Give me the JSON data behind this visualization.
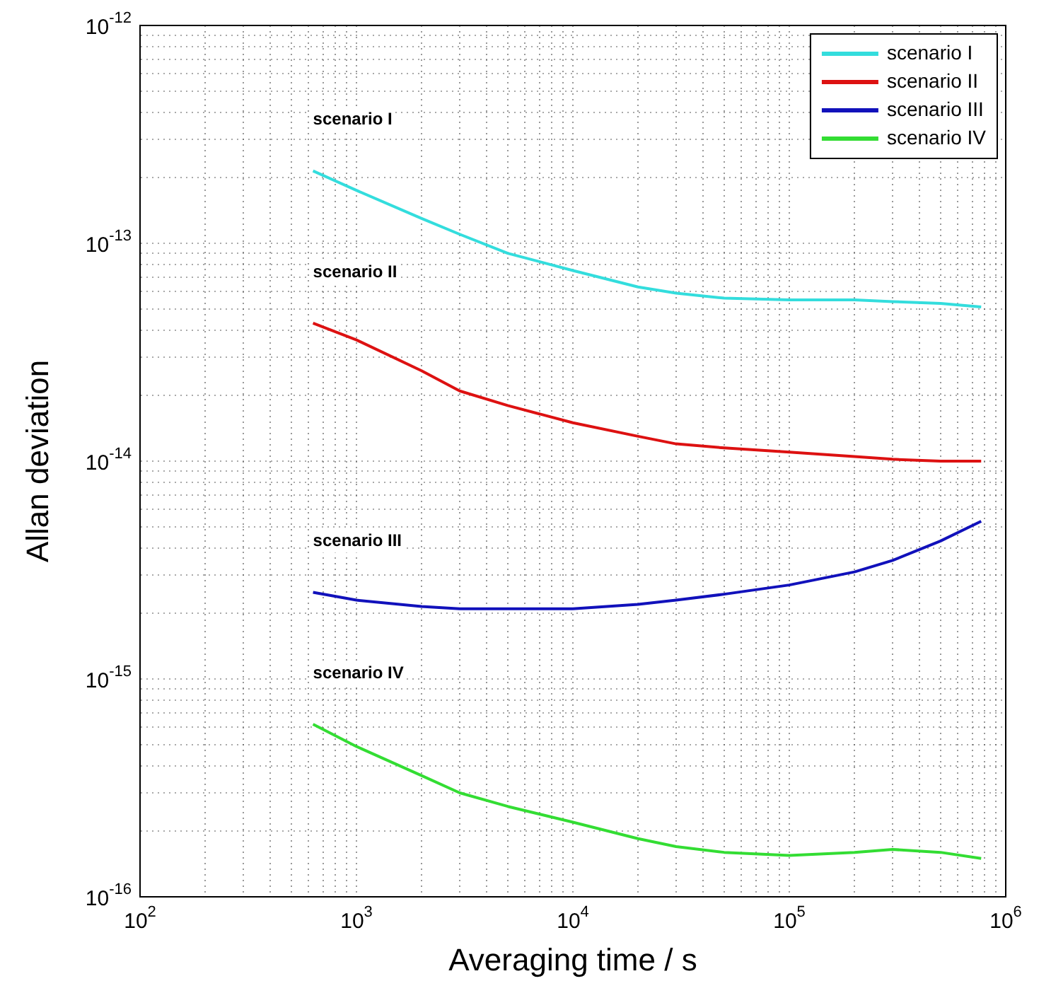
{
  "chart_data": {
    "type": "line",
    "xlabel": "Averaging time / s",
    "ylabel": "Allan deviation",
    "log": "xy",
    "grid": true,
    "legend": "top right",
    "line_style": "solid",
    "marker": "none",
    "xlim": [
      100,
      1000000
    ],
    "xticks": [
      {
        "value": 100,
        "label": "10$^{2}$"
      },
      {
        "value": 200,
        "label": null
      },
      {
        "value": 300,
        "label": null
      },
      {
        "value": 400,
        "label": null
      },
      {
        "value": 500,
        "label": null
      },
      {
        "value": 600,
        "label": null
      },
      {
        "value": 700,
        "label": null
      },
      {
        "value": 800,
        "label": null
      },
      {
        "value": 900,
        "label": null
      },
      {
        "value": 1000,
        "label": "10$^{3}$"
      },
      {
        "value": 2000,
        "label": null
      },
      {
        "value": 3000,
        "label": null
      },
      {
        "value": 4000,
        "label": null
      },
      {
        "value": 5000,
        "label": null
      },
      {
        "value": 6000,
        "label": null
      },
      {
        "value": 7000,
        "label": null
      },
      {
        "value": 8000,
        "label": null
      },
      {
        "value": 9000,
        "label": null
      },
      {
        "value": 10000,
        "label": "10$^{4}$"
      },
      {
        "value": 20000,
        "label": null
      },
      {
        "value": 30000,
        "label": null
      },
      {
        "value": 40000,
        "label": null
      },
      {
        "value": 50000,
        "label": null
      },
      {
        "value": 60000,
        "label": null
      },
      {
        "value": 70000,
        "label": null
      },
      {
        "value": 80000,
        "label": null
      },
      {
        "value": 90000,
        "label": null
      },
      {
        "value": 100000,
        "label": "10$^{5}$"
      },
      {
        "value": 200000,
        "label": null
      },
      {
        "value": 300000,
        "label": null
      },
      {
        "value": 400000,
        "label": null
      },
      {
        "value": 500000,
        "label": null
      },
      {
        "value": 600000,
        "label": null
      },
      {
        "value": 700000,
        "label": null
      },
      {
        "value": 800000,
        "label": null
      },
      {
        "value": 900000,
        "label": null
      },
      {
        "value": 1000000,
        "label": "10$^{6}$"
      }
    ],
    "ylim": [
      1e-16,
      1e-12
    ],
    "yticks": [
      {
        "value": 1e-16,
        "label": "10$^{-16}$"
      },
      {
        "value": 2e-16,
        "label": null
      },
      {
        "value": 3e-16,
        "label": null
      },
      {
        "value": 4e-16,
        "label": null
      },
      {
        "value": 5e-16,
        "label": null
      },
      {
        "value": 6e-16,
        "label": null
      },
      {
        "value": 7e-16,
        "label": null
      },
      {
        "value": 8e-16,
        "label": null
      },
      {
        "value": 9e-16,
        "label": null
      },
      {
        "value": 1e-15,
        "label": "10$^{-15}$"
      },
      {
        "value": 2e-15,
        "label": null
      },
      {
        "value": 3e-15,
        "label": null
      },
      {
        "value": 4e-15,
        "label": null
      },
      {
        "value": 5e-15,
        "label": null
      },
      {
        "value": 6e-15,
        "label": null
      },
      {
        "value": 7e-15,
        "label": null
      },
      {
        "value": 8e-15,
        "label": null
      },
      {
        "value": 9e-15,
        "label": null
      },
      {
        "value": 1e-14,
        "label": "10$^{-14}$"
      },
      {
        "value": 2e-14,
        "label": null
      },
      {
        "value": 3e-14,
        "label": null
      },
      {
        "value": 4e-14,
        "label": null
      },
      {
        "value": 5e-14,
        "label": null
      },
      {
        "value": 6e-14,
        "label": null
      },
      {
        "value": 7e-14,
        "label": null
      },
      {
        "value": 8e-14,
        "label": null
      },
      {
        "value": 9e-14,
        "label": null
      },
      {
        "value": 1e-13,
        "label": "10$^{-13}$"
      },
      {
        "value": 2e-13,
        "label": null
      },
      {
        "value": 3e-13,
        "label": null
      },
      {
        "value": 4e-13,
        "label": null
      },
      {
        "value": 5e-13,
        "label": null
      },
      {
        "value": 6e-13,
        "label": null
      },
      {
        "value": 7e-13,
        "label": null
      },
      {
        "value": 8e-13,
        "label": null
      },
      {
        "value": 9e-13,
        "label": null
      },
      {
        "value": 1e-12,
        "label": "10$^{-12}$"
      }
    ],
    "x": [
      630,
      1000,
      2000,
      3000,
      5000,
      10000,
      20000,
      30000,
      50000,
      100000,
      200000,
      300000,
      500000,
      770000
    ],
    "series": [
      {
        "name": "scenario I",
        "color": "#33dddd",
        "values": [
          2.15e-13,
          1.75e-13,
          1.3e-13,
          1.1e-13,
          9e-14,
          7.5e-14,
          6.3e-14,
          5.9e-14,
          5.6e-14,
          5.5e-14,
          5.5e-14,
          5.4e-14,
          5.3e-14,
          5.1e-14
        ]
      },
      {
        "name": "scenario II",
        "color": "#dd1111",
        "values": [
          4.3e-14,
          3.6e-14,
          2.6e-14,
          2.1e-14,
          1.8e-14,
          1.5e-14,
          1.3e-14,
          1.2e-14,
          1.15e-14,
          1.1e-14,
          1.05e-14,
          1.02e-14,
          1e-14,
          1e-14
        ]
      },
      {
        "name": "scenario III",
        "color": "#1111bb",
        "values": [
          2.5e-15,
          2.3e-15,
          2.15e-15,
          2.1e-15,
          2.1e-15,
          2.1e-15,
          2.2e-15,
          2.3e-15,
          2.45e-15,
          2.7e-15,
          3.1e-15,
          3.5e-15,
          4.3e-15,
          5.3e-15
        ]
      },
      {
        "name": "scenario IV",
        "color": "#33dd33",
        "values": [
          6.2e-16,
          4.9e-16,
          3.6e-16,
          3e-16,
          2.6e-16,
          2.2e-16,
          1.85e-16,
          1.7e-16,
          1.6e-16,
          1.55e-16,
          1.6e-16,
          1.65e-16,
          1.6e-16,
          1.5e-16
        ]
      }
    ],
    "annotations": [
      "scenario I",
      "scenario II",
      "scenario III",
      "scenario IV"
    ]
  }
}
